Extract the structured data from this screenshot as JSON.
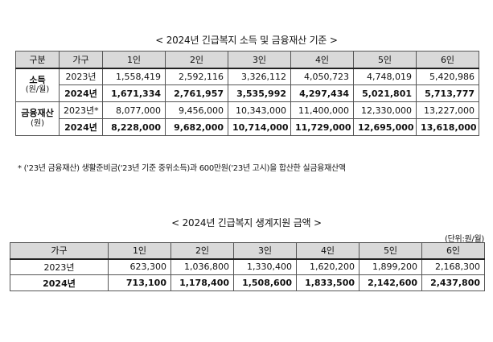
{
  "table1": {
    "title": "< 2024년 긴급복지 소득 및 금융재산 기준 >",
    "headers": [
      "구분",
      "가구",
      "1인",
      "2인",
      "3인",
      "4인",
      "5인",
      "6인"
    ],
    "groups": [
      {
        "label": "소득",
        "sublabel": "(원/월)",
        "rows": [
          {
            "year": "2023년",
            "values": [
              "1,558,419",
              "2,592,116",
              "3,326,112",
              "4,050,723",
              "4,748,019",
              "5,420,986"
            ]
          },
          {
            "year": "2024년",
            "values": [
              "1,671,334",
              "2,761,957",
              "3,535,992",
              "4,297,434",
              "5,021,801",
              "5,713,777"
            ]
          }
        ]
      },
      {
        "label": "금융재산",
        "sublabel": "(원)",
        "rows": [
          {
            "year": "2023년*",
            "values": [
              "8,077,000",
              "9,456,000",
              "10,343,000",
              "11,400,000",
              "12,330,000",
              "13,227,000"
            ]
          },
          {
            "year": "2024년",
            "values": [
              "8,228,000",
              "9,682,000",
              "10,714,000",
              "11,729,000",
              "12,695,000",
              "13,618,000"
            ]
          }
        ]
      }
    ]
  },
  "note": "* ('23년 금융재산) 생활준비금('23년 기준 중위소득)과 600만원('23년 고시)을 합산한 실금융재산액",
  "table2": {
    "title": "< 2024년 긴급복지 생계지원 금액 >",
    "unit": "(단위:원/월)",
    "headers": [
      "가구",
      "1인",
      "2인",
      "3인",
      "4인",
      "5인",
      "6인"
    ],
    "rows": [
      {
        "year": "2023년",
        "values": [
          "623,300",
          "1,036,800",
          "1,330,400",
          "1,620,200",
          "1,899,200",
          "2,168,300"
        ]
      },
      {
        "year": "2024년",
        "values": [
          "713,100",
          "1,178,400",
          "1,508,600",
          "1,833,500",
          "2,142,600",
          "2,437,800"
        ]
      }
    ]
  }
}
